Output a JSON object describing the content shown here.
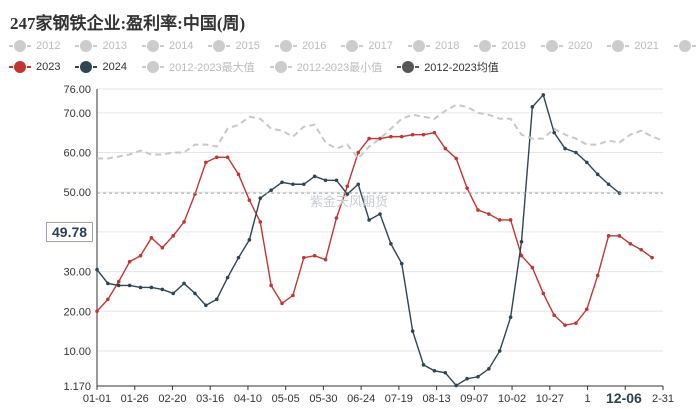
{
  "title": "247家钢铁企业:盈利率:中国(周)",
  "watermark": "紫金天风期货",
  "hover_value": "49.78",
  "hover_date": "12-06",
  "legend_row1": [
    {
      "label": "2012",
      "color": "#cccccc"
    },
    {
      "label": "2013",
      "color": "#cccccc"
    },
    {
      "label": "2014",
      "color": "#cccccc"
    },
    {
      "label": "2015",
      "color": "#cccccc"
    },
    {
      "label": "2016",
      "color": "#cccccc"
    },
    {
      "label": "2017",
      "color": "#cccccc"
    },
    {
      "label": "2018",
      "color": "#cccccc"
    },
    {
      "label": "2019",
      "color": "#cccccc"
    },
    {
      "label": "2020",
      "color": "#cccccc"
    },
    {
      "label": "2021",
      "color": "#cccccc"
    },
    {
      "label": "2022",
      "color": "#cccccc"
    }
  ],
  "legend_row2": [
    {
      "label": "2023",
      "color": "#c23531"
    },
    {
      "label": "2024",
      "color": "#2f4554"
    },
    {
      "label": "2012-2023最大值",
      "color": "#cccccc"
    },
    {
      "label": "2012-2023最小值",
      "color": "#cccccc"
    },
    {
      "label": "2012-2023均值",
      "color": "#555555"
    }
  ],
  "chart_data": {
    "type": "line",
    "x_tick_labels": [
      "01-01",
      "01-26",
      "02-20",
      "03-16",
      "04-10",
      "05-05",
      "05-30",
      "06-24",
      "07-19",
      "08-13",
      "09-07",
      "10-02",
      "10-27",
      "1",
      "12-06",
      "2-31"
    ],
    "y_tick_labels": [
      "1.170",
      "10.00",
      "20.00",
      "30.00",
      "40.00",
      "50.00",
      "60.00",
      "70.00",
      "76.00"
    ],
    "ylim": [
      1.17,
      76.0
    ],
    "x_range": [
      0,
      52
    ],
    "grid": true,
    "series": [
      {
        "name": "2023",
        "color": "#c23531",
        "x": [
          0,
          1,
          2,
          3,
          4,
          5,
          6,
          7,
          8,
          9,
          10,
          11,
          12,
          13,
          14,
          15,
          16,
          17,
          18,
          19,
          20,
          21,
          22,
          23,
          24,
          25,
          26,
          27,
          28,
          29,
          30,
          31,
          32,
          33,
          34,
          35,
          36,
          37,
          38,
          39,
          40,
          41,
          42,
          43,
          44,
          45,
          46,
          47,
          48,
          49,
          50,
          51
        ],
        "values": [
          20.0,
          23.0,
          27.5,
          32.5,
          34.0,
          38.5,
          36.0,
          39.0,
          42.5,
          49.5,
          57.5,
          58.8,
          58.8,
          54.5,
          48.0,
          42.5,
          26.5,
          22.0,
          24.0,
          33.5,
          34.0,
          33.0,
          43.5,
          51.5,
          60.0,
          63.5,
          63.5,
          64.0,
          64.0,
          64.5,
          64.5,
          65.0,
          61.0,
          58.5,
          51.0,
          45.5,
          44.5,
          43.0,
          43.0,
          34.0,
          31.0,
          24.5,
          19.0,
          16.5,
          17.0,
          20.5,
          29.0,
          39.0,
          39.0,
          37.0,
          35.5,
          33.5
        ]
      },
      {
        "name": "2024",
        "color": "#2f4554",
        "x": [
          0,
          1,
          2,
          3,
          4,
          5,
          6,
          7,
          8,
          9,
          10,
          11,
          12,
          13,
          14,
          15,
          16,
          17,
          18,
          19,
          20,
          21,
          22,
          23,
          24,
          25,
          26,
          27,
          28,
          29,
          30,
          31,
          32,
          33,
          34,
          35,
          36,
          37,
          38,
          39,
          40,
          41,
          42,
          43,
          44,
          45,
          46,
          47,
          48
        ],
        "values": [
          30.5,
          27.0,
          26.5,
          26.5,
          26.0,
          26.0,
          25.5,
          24.5,
          27.0,
          24.5,
          21.5,
          23.0,
          28.5,
          33.5,
          38.0,
          48.5,
          50.5,
          52.5,
          52.0,
          52.0,
          54.0,
          53.0,
          53.0,
          49.5,
          52.0,
          43.0,
          44.5,
          37.0,
          32.0,
          15.0,
          6.5,
          5.0,
          4.5,
          1.3,
          3.0,
          3.5,
          5.5,
          10.0,
          18.5,
          37.5,
          71.5,
          74.5,
          65.0,
          61.0,
          60.0,
          57.5,
          54.5,
          52.0,
          49.78
        ]
      },
      {
        "name": "2012-2023最大值",
        "color": "#c8c8c8",
        "dashed": true,
        "x": [
          0,
          1,
          2,
          3,
          4,
          5,
          6,
          7,
          8,
          9,
          10,
          11,
          12,
          13,
          14,
          15,
          16,
          17,
          18,
          19,
          20,
          21,
          22,
          23,
          24,
          25,
          26,
          27,
          28,
          29,
          30,
          31,
          32,
          33,
          34,
          35,
          36,
          37,
          38,
          39,
          40,
          41,
          42,
          43,
          44,
          45,
          46,
          47,
          48,
          49,
          50,
          51,
          52
        ],
        "values": [
          58.5,
          58.5,
          59.0,
          59.5,
          60.5,
          59.5,
          59.5,
          60.0,
          60.0,
          62.0,
          62.0,
          61.5,
          66.0,
          67.0,
          69.0,
          68.5,
          66.0,
          65.5,
          64.0,
          66.5,
          67.0,
          62.5,
          61.0,
          62.0,
          58.5,
          61.5,
          63.5,
          66.0,
          68.5,
          69.5,
          69.0,
          68.5,
          70.5,
          72.0,
          71.5,
          70.0,
          69.5,
          68.5,
          68.5,
          64.5,
          63.5,
          63.5,
          66.0,
          64.5,
          63.5,
          62.0,
          62.0,
          63.0,
          62.5,
          64.5,
          65.5,
          64.0,
          63.0
        ]
      }
    ]
  }
}
